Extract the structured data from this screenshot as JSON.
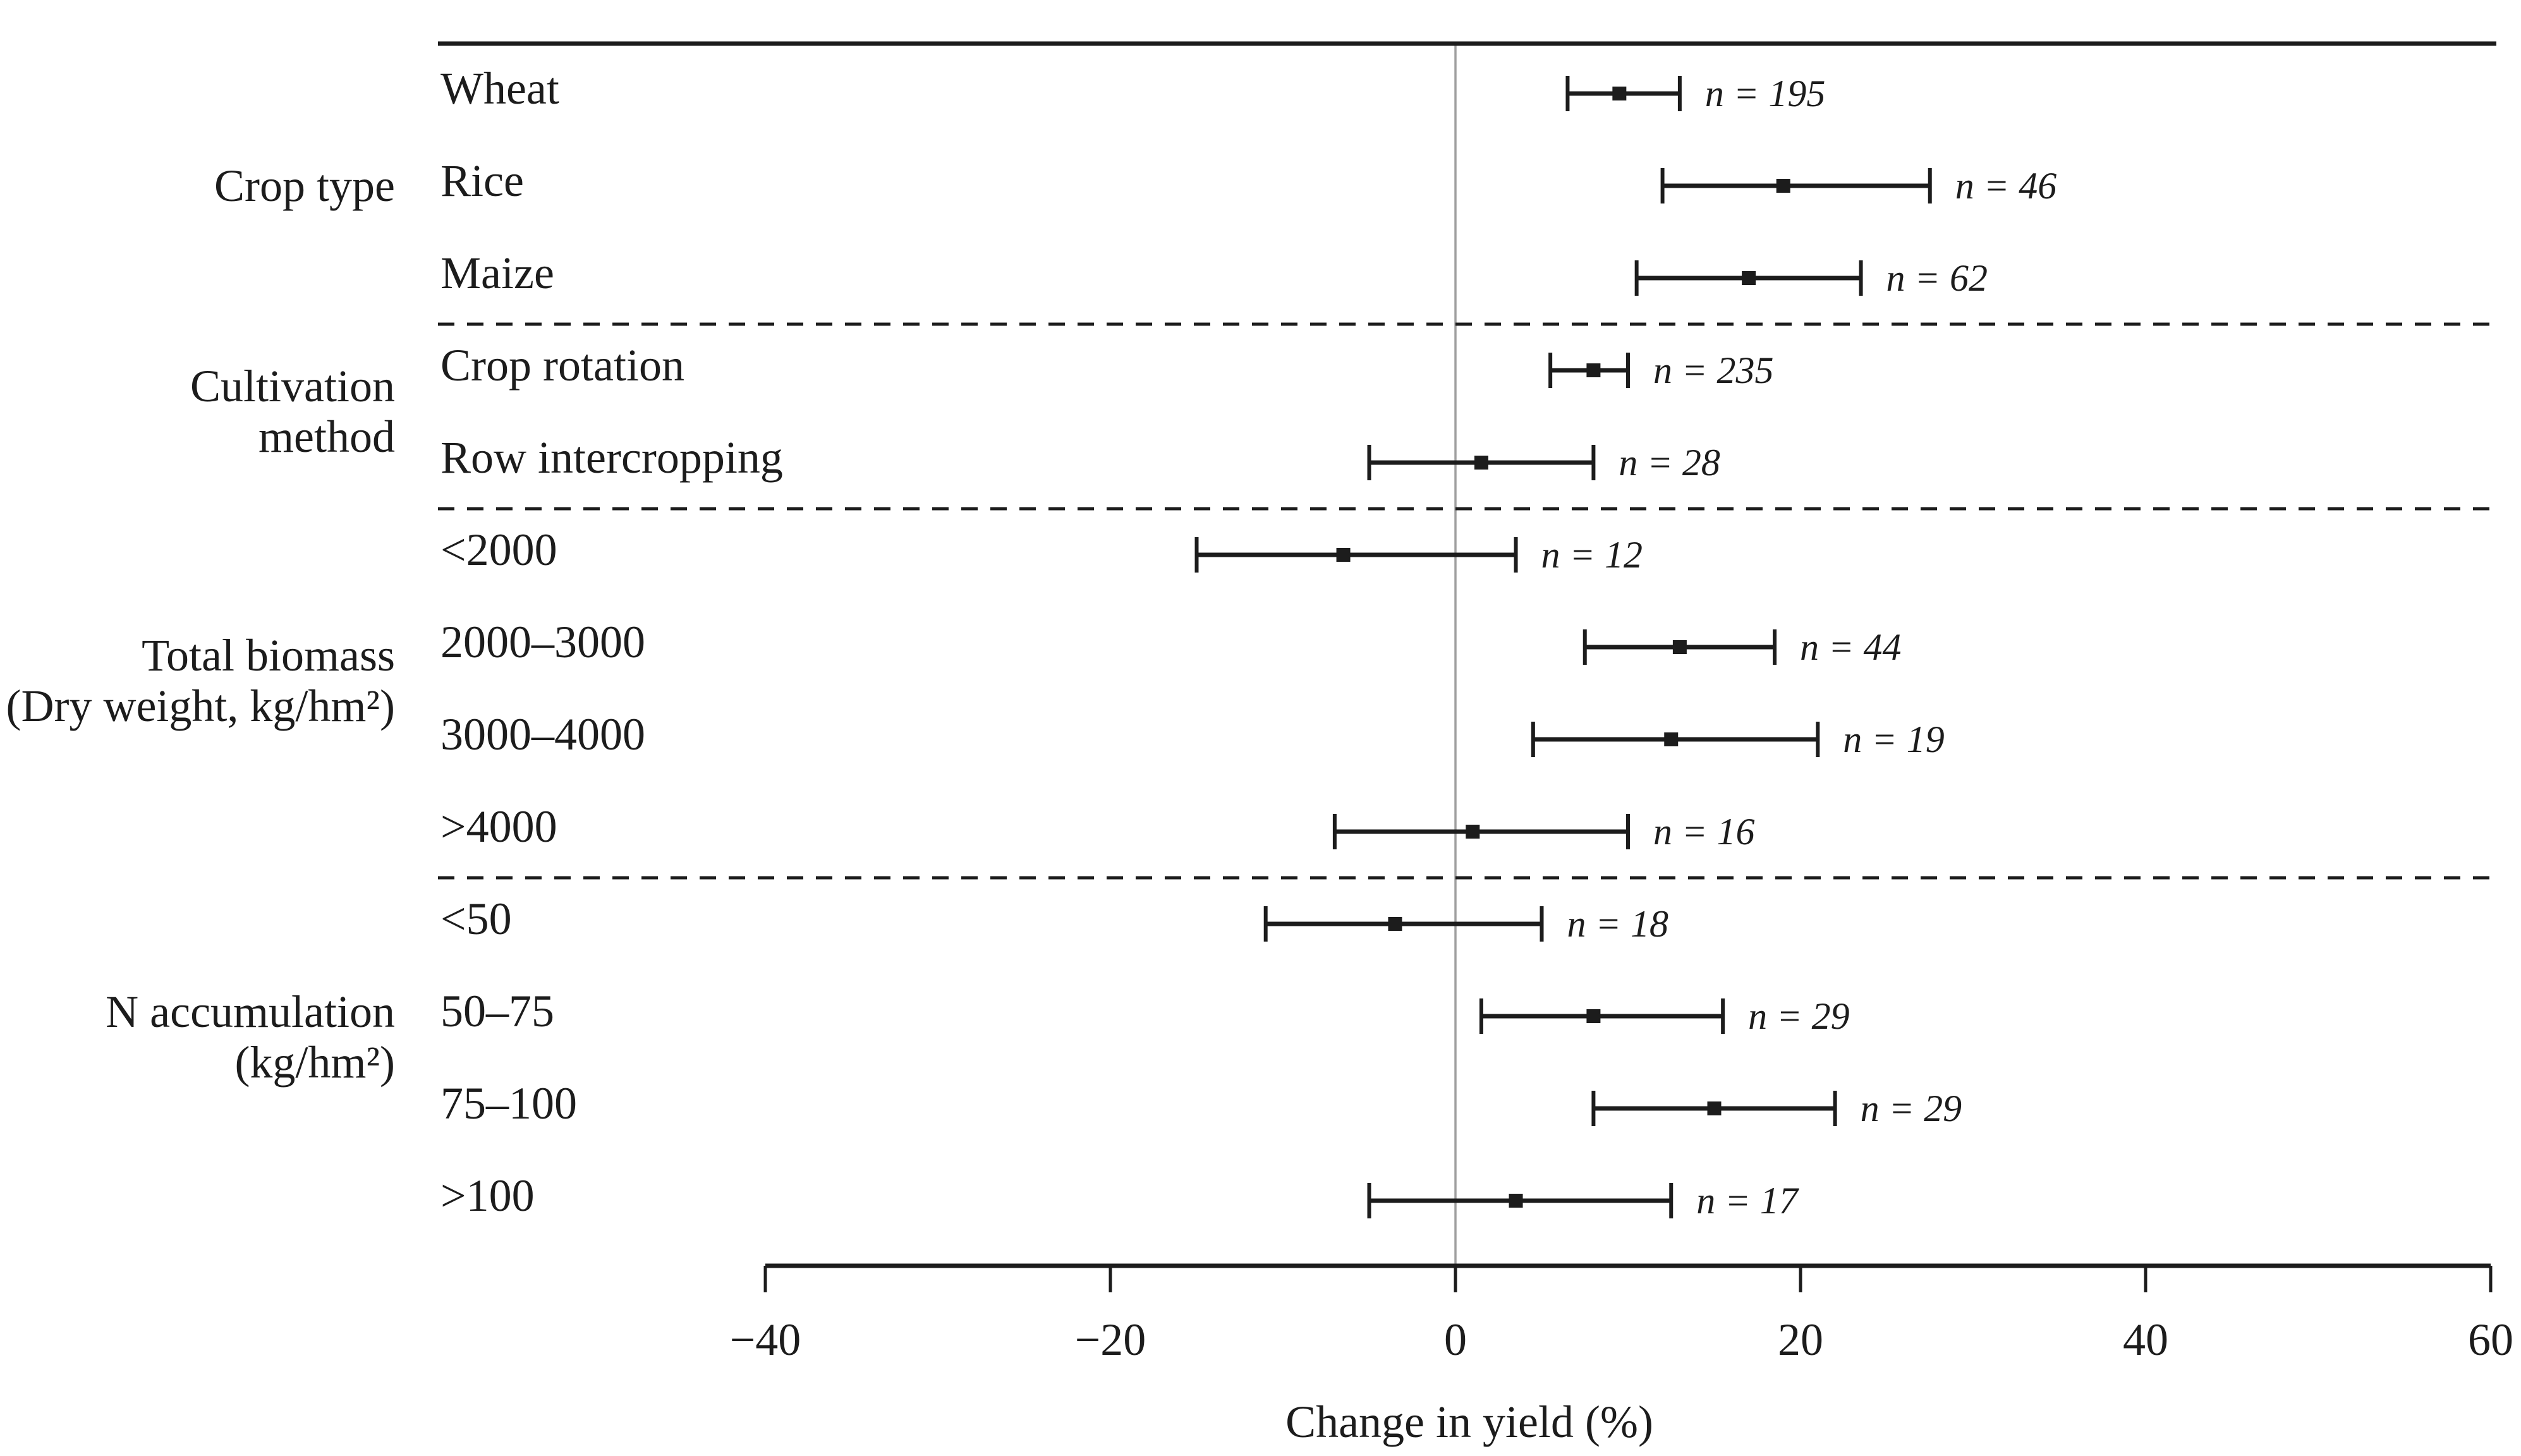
{
  "figure": {
    "kind": "forest-plot-figure",
    "background": "#ffffff"
  },
  "chart_data": {
    "type": "scatter",
    "subtype": "forest-plot",
    "title": "",
    "xlabel": "Change in yield (%)",
    "ylabel": "",
    "xlim": [
      -40,
      60
    ],
    "grid": false,
    "zero_reference_value": 0,
    "sample_size_prefix": "n = ",
    "x_ticks": [
      {
        "value": -40,
        "label": "−40"
      },
      {
        "value": -20,
        "label": "−20"
      },
      {
        "value": 0,
        "label": "0"
      },
      {
        "value": 20,
        "label": "20"
      },
      {
        "value": 40,
        "label": "40"
      },
      {
        "value": 60,
        "label": "60"
      }
    ],
    "groups": [
      {
        "label_lines": [
          "Crop type"
        ],
        "items": [
          {
            "category": "Wheat",
            "mean": 9.5,
            "ci_low": 6.5,
            "ci_high": 13,
            "n": 195
          },
          {
            "category": "Rice",
            "mean": 19,
            "ci_low": 12,
            "ci_high": 27.5,
            "n": 46
          },
          {
            "category": "Maize",
            "mean": 17,
            "ci_low": 10.5,
            "ci_high": 23.5,
            "n": 62
          }
        ]
      },
      {
        "label_lines": [
          "Cultivation",
          "method"
        ],
        "items": [
          {
            "category": "Crop rotation",
            "mean": 8,
            "ci_low": 5.5,
            "ci_high": 10,
            "n": 235
          },
          {
            "category": "Row intercropping",
            "mean": 1.5,
            "ci_low": -5,
            "ci_high": 8,
            "n": 28
          }
        ]
      },
      {
        "label_lines": [
          "Total biomass",
          "(Dry weight, kg/hm²)"
        ],
        "items": [
          {
            "category": "<2000",
            "mean": -6.5,
            "ci_low": -15,
            "ci_high": 3.5,
            "n": 12
          },
          {
            "category": "2000–3000",
            "mean": 13,
            "ci_low": 7.5,
            "ci_high": 18.5,
            "n": 44
          },
          {
            "category": "3000–4000",
            "mean": 12.5,
            "ci_low": 4.5,
            "ci_high": 21,
            "n": 19
          },
          {
            "category": ">4000",
            "mean": 1,
            "ci_low": -7,
            "ci_high": 10,
            "n": 16
          }
        ]
      },
      {
        "label_lines": [
          "N accumulation",
          "(kg/hm²)"
        ],
        "items": [
          {
            "category": "<50",
            "mean": -3.5,
            "ci_low": -11,
            "ci_high": 5,
            "n": 18
          },
          {
            "category": "50–75",
            "mean": 8,
            "ci_low": 1.5,
            "ci_high": 15.5,
            "n": 29
          },
          {
            "category": "75–100",
            "mean": 15,
            "ci_low": 8,
            "ci_high": 22,
            "n": 29
          },
          {
            "category": ">100",
            "mean": 3.5,
            "ci_low": -5,
            "ci_high": 12.5,
            "n": 17
          }
        ]
      }
    ],
    "legend": null,
    "colors": {
      "text": "#1c1c1c",
      "line": "#1c1c1c",
      "zero_line": "#a0a0a0"
    },
    "layout_hints": {
      "separator_style": "dashed",
      "marker": "square",
      "group_labels_position": "left-outside",
      "sample_labels_position": "right-of-ci"
    }
  }
}
